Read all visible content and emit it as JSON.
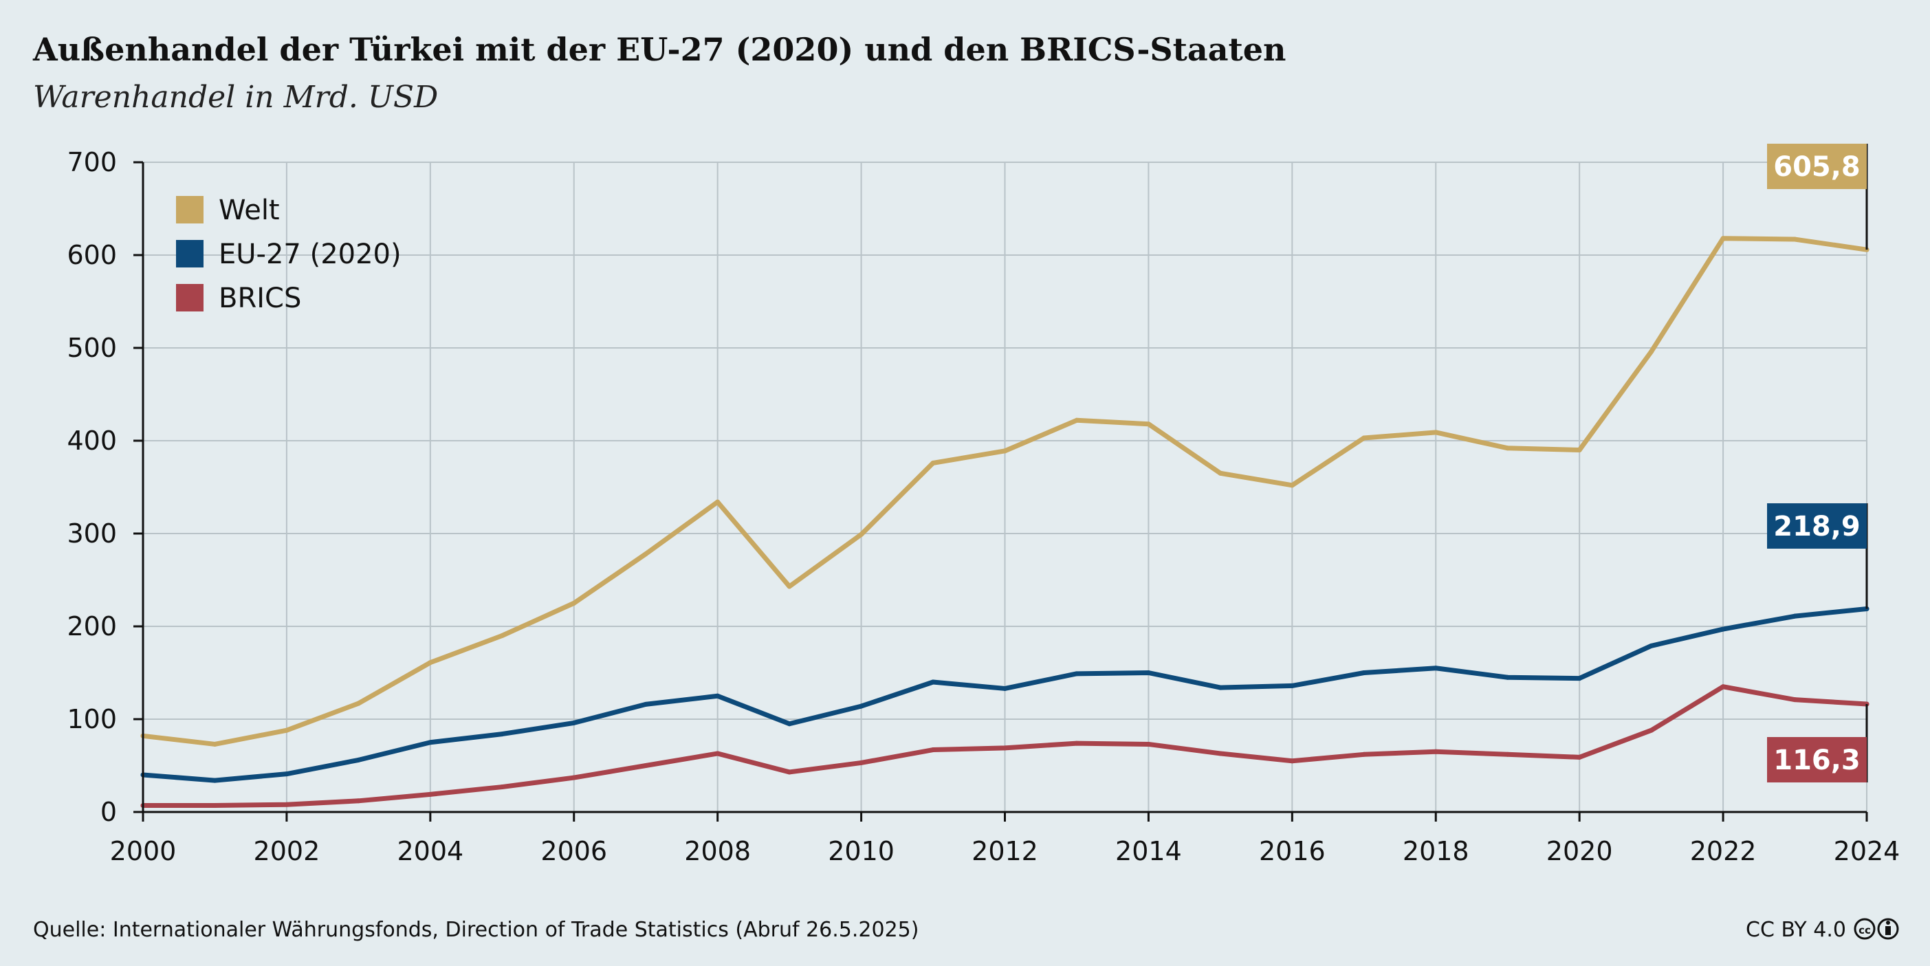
{
  "header": {
    "title": "Außenhandel der Türkei mit der EU-27 (2020) und den BRICS-Staaten",
    "subtitle": "Warenhandel in Mrd. USD"
  },
  "footer": {
    "source": "Quelle: Internationaler Währungsfonds, Direction of Trade Statistics (Abruf 26.5.2025)",
    "license": "CC BY 4.0"
  },
  "chart_data": {
    "type": "line",
    "title": "Außenhandel der Türkei mit der EU-27 (2020) und den BRICS-Staaten",
    "subtitle": "Warenhandel in Mrd. USD",
    "xlabel": "",
    "ylabel": "",
    "x": [
      2000,
      2001,
      2002,
      2003,
      2004,
      2005,
      2006,
      2007,
      2008,
      2009,
      2010,
      2011,
      2012,
      2013,
      2014,
      2015,
      2016,
      2017,
      2018,
      2019,
      2020,
      2021,
      2022,
      2023,
      2024
    ],
    "xlim": [
      2000,
      2024
    ],
    "ylim": [
      0,
      700
    ],
    "xticks": [
      "2000",
      "2002",
      "2004",
      "2006",
      "2008",
      "2010",
      "2012",
      "2014",
      "2016",
      "2018",
      "2020",
      "2022",
      "2024"
    ],
    "yticks": [
      "0",
      "100",
      "200",
      "300",
      "400",
      "500",
      "600",
      "700"
    ],
    "grid": true,
    "legend_position": "top-left",
    "series": [
      {
        "name": "Welt",
        "color": "#c8a862",
        "values": [
          82,
          73,
          88,
          117,
          161,
          190,
          225,
          278,
          334,
          243,
          299,
          376,
          389,
          422,
          418,
          365,
          352,
          403,
          409,
          392,
          390,
          496,
          618,
          617,
          605.8
        ],
        "end_label": "605,8"
      },
      {
        "name": "EU-27 (2020)",
        "color": "#0d4a7a",
        "values": [
          40,
          34,
          41,
          56,
          75,
          84,
          96,
          116,
          125,
          95,
          114,
          140,
          133,
          149,
          150,
          134,
          136,
          150,
          155,
          145,
          144,
          179,
          197,
          211,
          218.9
        ],
        "end_label": "218,9"
      },
      {
        "name": "BRICS",
        "color": "#a8434b",
        "values": [
          7,
          7,
          8,
          12,
          19,
          27,
          37,
          50,
          63,
          43,
          53,
          67,
          69,
          74,
          73,
          63,
          55,
          62,
          65,
          62,
          59,
          88,
          135,
          121,
          116.3
        ],
        "end_label": "116,3"
      }
    ]
  }
}
